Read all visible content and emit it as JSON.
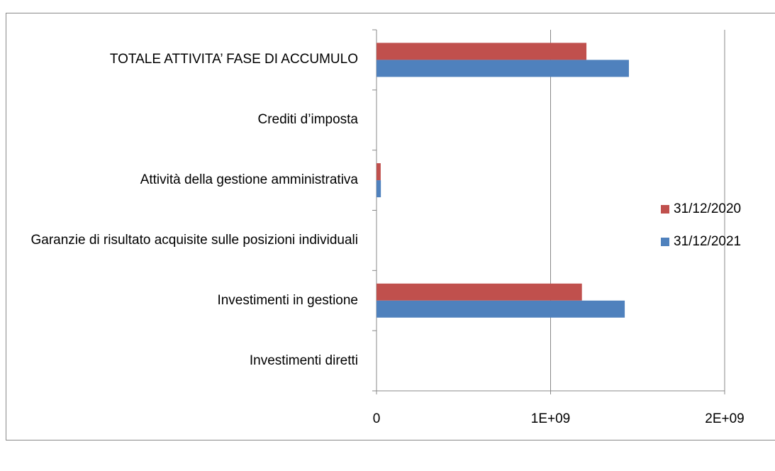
{
  "chart_data": {
    "type": "bar",
    "orientation": "horizontal",
    "categories": [
      "TOTALE ATTIVITA’ FASE DI ACCUMULO",
      "Crediti d’imposta",
      "Attività della gestione amministrativa",
      "Garanzie di risultato acquisite sulle posizioni individuali",
      "Investimenti in gestione",
      "Investimenti diretti"
    ],
    "series": [
      {
        "name": "31/12/2020",
        "color": "#c0504d",
        "values": [
          1206000000,
          0,
          24000000,
          0,
          1180000000,
          0
        ]
      },
      {
        "name": "31/12/2021",
        "color": "#4f81bd",
        "values": [
          1450000000,
          0,
          25000000,
          0,
          1426000000,
          0
        ]
      }
    ],
    "xlim": [
      0,
      2000000000
    ],
    "xticks": [
      0,
      {
        "value": 1000000000,
        "label": "1E+09"
      },
      {
        "value": 2000000000,
        "label": "2E+09"
      }
    ],
    "grid": true,
    "legend": "right"
  }
}
